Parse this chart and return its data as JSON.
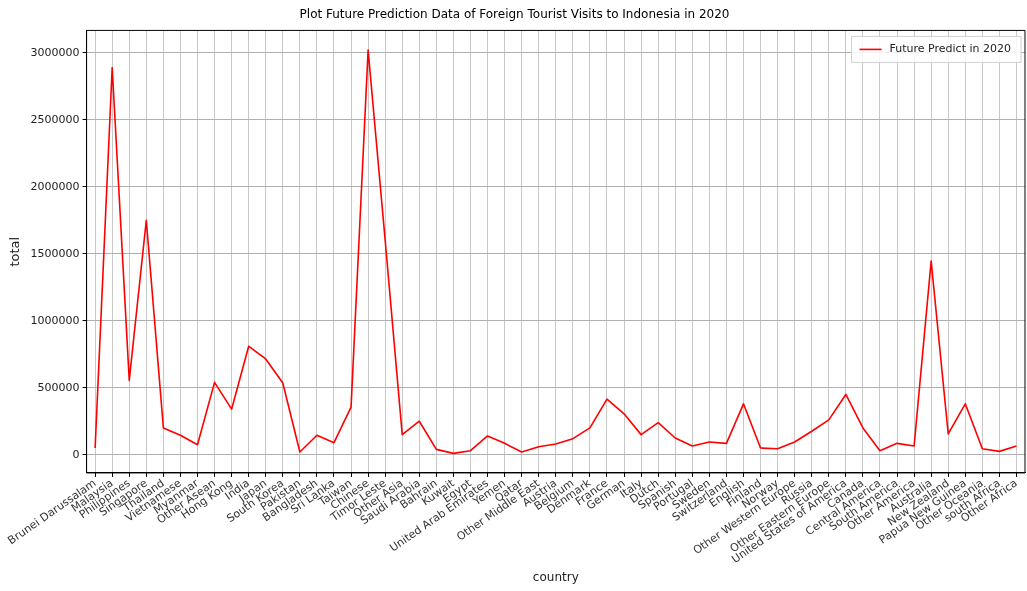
{
  "chart_data": {
    "type": "line",
    "title": "Plot Future Prediction Data of Foreign Tourist Visits to Indonesia in 2020",
    "xlabel": "country",
    "ylabel": "total",
    "categories": [
      "Brunei Darussalam",
      "Malaysia",
      "Philippines",
      "Singapore",
      "Thailand",
      "Vietnamese",
      "Myanmar",
      "Other Asean",
      "Hong Kong",
      "India",
      "Japan",
      "South Korea",
      "Pakistan",
      "Bangladesh",
      "Sri Lanka",
      "Taiwan",
      "Chinese",
      "Timor Leste",
      "Other Asia",
      "Saudi Arabia",
      "Bahrain",
      "Kuwait",
      "Egypt",
      "United Arab Emirates",
      "Yemen",
      "Qatar",
      "Other Middle East",
      "Austria",
      "Belgium",
      "Denmark",
      "France",
      "German",
      "Italy",
      "Dutch",
      "Spanish",
      "Portugal",
      "Sweden",
      "Switzerland",
      "English",
      "Finland",
      "Norway",
      "Other Western Europe",
      "Russia",
      "Other Eastern Europe",
      "United States of America",
      "Canada",
      "Central America",
      "South America",
      "Other America",
      "Australia",
      "New Zealand",
      "Papua New Guinea",
      "Other Oceania",
      "south Africa",
      "Other Africa"
    ],
    "series": [
      {
        "name": "Future Predict in 2020",
        "color": "#ff0000",
        "values": [
          50000,
          2890000,
          555000,
          1750000,
          200000,
          145000,
          75000,
          540000,
          340000,
          810000,
          715000,
          535000,
          20000,
          145000,
          90000,
          355000,
          3020000,
          1600000,
          150000,
          250000,
          40000,
          10000,
          30000,
          140000,
          85000,
          20000,
          60000,
          80000,
          120000,
          200000,
          415000,
          305000,
          150000,
          240000,
          125000,
          65000,
          95000,
          85000,
          380000,
          50000,
          45000,
          95000,
          175000,
          260000,
          450000,
          200000,
          30000,
          85000,
          65000,
          1445000,
          155000,
          380000,
          45000,
          25000,
          65000
        ]
      }
    ],
    "ylim": [
      -136000,
      3167000
    ],
    "yticks": [
      0,
      500000,
      1000000,
      1500000,
      2000000,
      2500000,
      3000000
    ],
    "grid": true,
    "legend": "top right",
    "marker": "none",
    "line_style": "solid"
  }
}
